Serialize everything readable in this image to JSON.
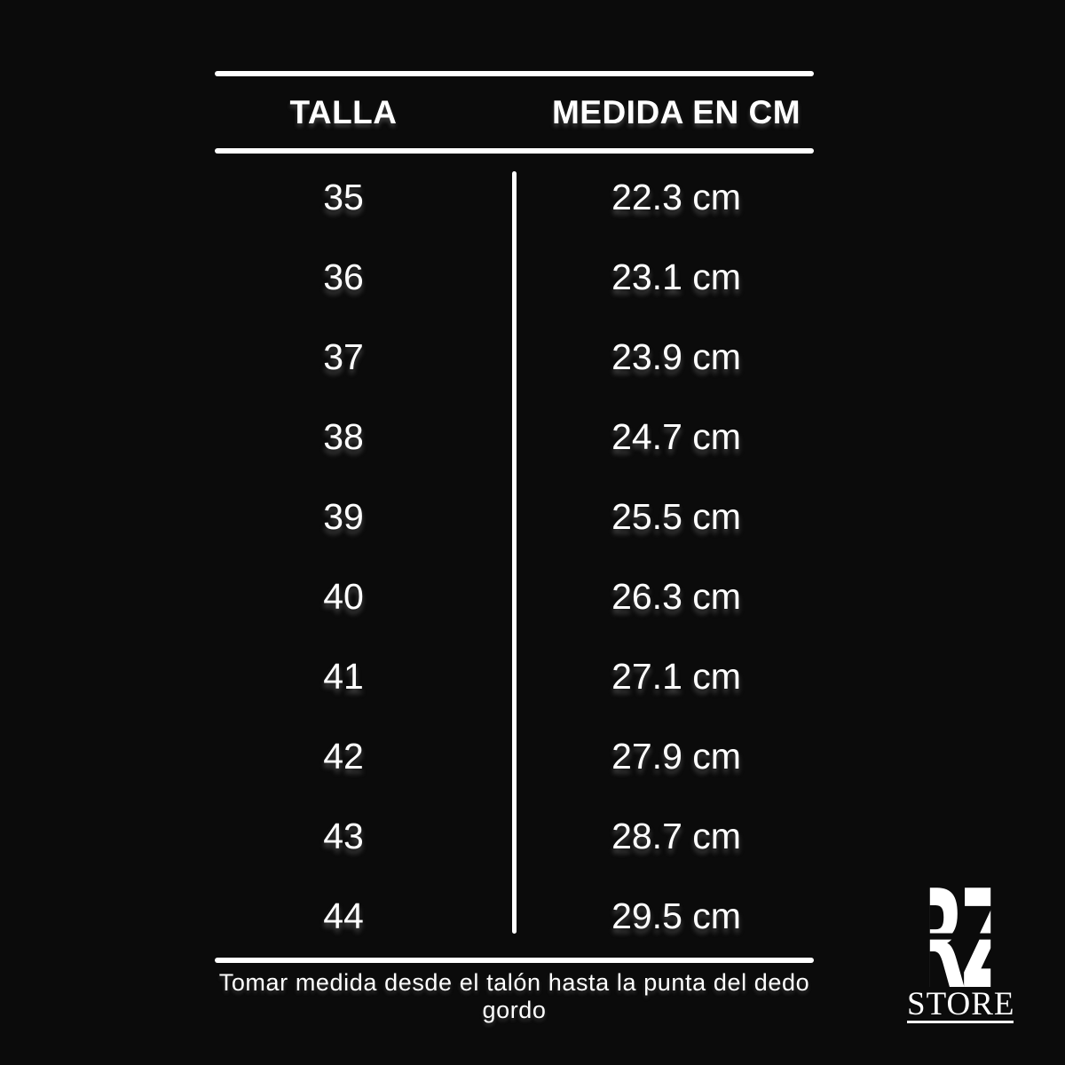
{
  "chart_data": {
    "type": "table",
    "columns": [
      "TALLA",
      "MEDIDA EN CM"
    ],
    "rows": [
      [
        "35",
        "22.3 cm"
      ],
      [
        "36",
        "23.1 cm"
      ],
      [
        "37",
        "23.9 cm"
      ],
      [
        "38",
        "24.7 cm"
      ],
      [
        "39",
        "25.5 cm"
      ],
      [
        "40",
        "26.3 cm"
      ],
      [
        "41",
        "27.1 cm"
      ],
      [
        "42",
        "27.9 cm"
      ],
      [
        "43",
        "28.7 cm"
      ],
      [
        "44",
        "29.5 cm"
      ]
    ]
  },
  "footer": {
    "note": "Tomar medida desde el talón hasta la punta del dedo gordo"
  },
  "logo": {
    "monogram": "RZ",
    "caption": "STORE"
  },
  "colors": {
    "background": "#0b0b0b",
    "text": "#ffffff"
  }
}
